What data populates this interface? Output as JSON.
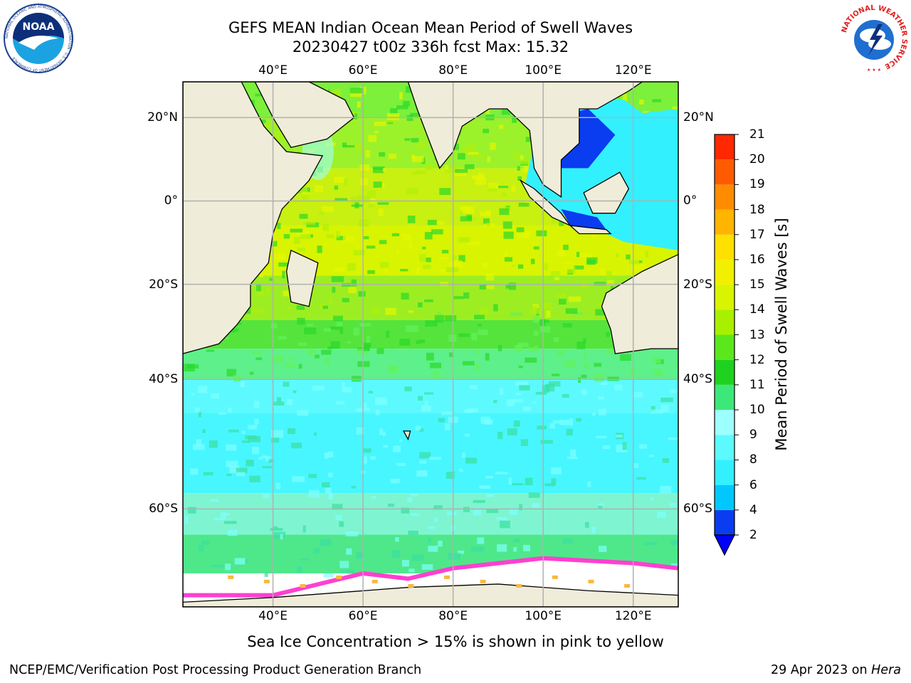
{
  "header": {
    "title_line1": "GEFS MEAN Indian Ocean Mean Period of Swell Waves",
    "title_line2": "20230427 t00z 336h fcst   Max: 15.32"
  },
  "axes": {
    "lon_labels": [
      "40°E",
      "60°E",
      "80°E",
      "100°E",
      "120°E"
    ],
    "lon_values": [
      40,
      60,
      80,
      100,
      120
    ],
    "lat_labels": [
      "20°N",
      "0°",
      "20°S",
      "40°S",
      "60°S"
    ],
    "lat_values": [
      20,
      0,
      -20,
      -40,
      -60
    ],
    "lon_range": [
      20,
      130
    ],
    "lat_range": [
      -70,
      28
    ]
  },
  "colorbar": {
    "title": "Mean Period of Swell Waves [s]",
    "ticks": [
      "2",
      "4",
      "6",
      "8",
      "9",
      "10",
      "11",
      "12",
      "13",
      "14",
      "15",
      "16",
      "17",
      "18",
      "19",
      "20",
      "21"
    ],
    "colors": [
      "#0a3cf0",
      "#00c8ff",
      "#33f0ff",
      "#5cfaff",
      "#9effff",
      "#3ce87a",
      "#1fd21f",
      "#5ae81c",
      "#a8f000",
      "#d8f400",
      "#f0f000",
      "#ffe000",
      "#ffb400",
      "#ff8c00",
      "#ff5a00",
      "#ff2800",
      "#ff0000"
    ],
    "underflow_color": "#0000ff"
  },
  "colors": {
    "land": "#efecd9",
    "grid": "#b0b0b0",
    "ice_pink": "#ff40d0",
    "ice_white": "#ffffff",
    "ice_yellow": "#f8b840"
  },
  "footer": {
    "note": "Sea Ice Concentration > 15% is shown in pink to yellow",
    "credit": "NCEP/EMC/Verification Post Processing Product Generation Branch",
    "date_prefix": "29 Apr 2023 on ",
    "date_host": "Hera"
  },
  "logos": {
    "noaa_text": "NOAA",
    "noaa_ring": "NATIONAL OCEANIC AND ATMOSPHERIC ADMINISTRATION · U.S. DEPARTMENT OF COMMERCE",
    "nws_ring": "NATIONAL WEATHER SERVICE"
  }
}
